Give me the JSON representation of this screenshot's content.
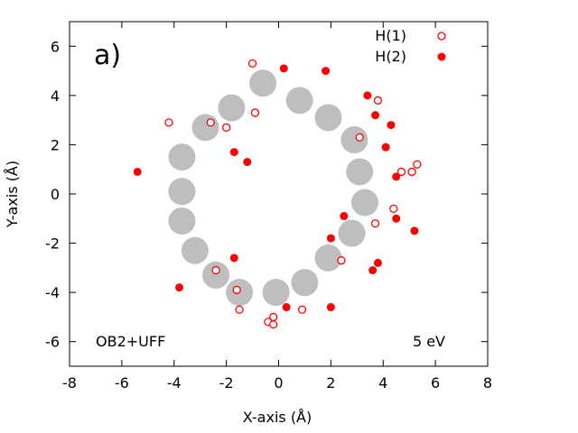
{
  "chart_data": {
    "type": "scatter",
    "panel_label": "a)",
    "xlabel": "X-axis (Å)",
    "ylabel": "Y-axis (Å)",
    "xlim": [
      -8,
      8
    ],
    "ylim": [
      -7,
      7
    ],
    "x_ticks": [
      -8,
      -6,
      -4,
      -2,
      0,
      2,
      4,
      6,
      8
    ],
    "y_ticks": [
      -6,
      -4,
      -2,
      0,
      2,
      4,
      6
    ],
    "grid": false,
    "legend_position": "top-right",
    "annotations": {
      "method": "OB2+UFF",
      "energy": "5 eV"
    },
    "ring": {
      "name": "ring atoms",
      "color": "#bebebe",
      "points": [
        [
          -0.6,
          4.5
        ],
        [
          0.8,
          3.8
        ],
        [
          1.9,
          3.1
        ],
        [
          2.9,
          2.2
        ],
        [
          3.1,
          0.9
        ],
        [
          3.3,
          -0.35
        ],
        [
          2.8,
          -1.6
        ],
        [
          1.9,
          -2.6
        ],
        [
          1.0,
          -3.6
        ],
        [
          -0.1,
          -4.0
        ],
        [
          -1.5,
          -4.0
        ],
        [
          -2.4,
          -3.3
        ],
        [
          -3.2,
          -2.3
        ],
        [
          -3.7,
          -1.1
        ],
        [
          -3.7,
          0.1
        ],
        [
          -3.7,
          1.5
        ],
        [
          -2.8,
          2.7
        ],
        [
          -1.8,
          3.5
        ]
      ]
    },
    "series": [
      {
        "name": "H(1)",
        "marker": "open-circle",
        "color": "#ff0000",
        "points": [
          [
            -1.0,
            5.3
          ],
          [
            -4.2,
            2.9
          ],
          [
            -2.6,
            2.9
          ],
          [
            -2.0,
            2.7
          ],
          [
            -0.9,
            3.3
          ],
          [
            3.1,
            2.3
          ],
          [
            3.8,
            3.8
          ],
          [
            4.7,
            0.9
          ],
          [
            5.1,
            0.9
          ],
          [
            5.3,
            1.2
          ],
          [
            4.4,
            -0.6
          ],
          [
            3.7,
            -1.2
          ],
          [
            2.4,
            -2.7
          ],
          [
            -2.4,
            -3.1
          ],
          [
            -1.6,
            -3.9
          ],
          [
            -1.5,
            -4.7
          ],
          [
            -0.4,
            -5.2
          ],
          [
            -0.2,
            -5.0
          ],
          [
            -0.2,
            -5.3
          ],
          [
            0.9,
            -4.7
          ]
        ]
      },
      {
        "name": "H(2)",
        "marker": "filled-circle",
        "color": "#ff0000",
        "points": [
          [
            0.2,
            5.1
          ],
          [
            1.8,
            5.0
          ],
          [
            3.4,
            4.0
          ],
          [
            3.7,
            3.2
          ],
          [
            4.3,
            2.8
          ],
          [
            4.1,
            1.9
          ],
          [
            -1.7,
            1.7
          ],
          [
            -1.2,
            1.3
          ],
          [
            -5.4,
            0.9
          ],
          [
            4.5,
            0.7
          ],
          [
            2.5,
            -0.9
          ],
          [
            4.5,
            -1.0
          ],
          [
            5.2,
            -1.5
          ],
          [
            2.0,
            -1.8
          ],
          [
            -1.7,
            -2.6
          ],
          [
            3.8,
            -2.8
          ],
          [
            3.6,
            -3.1
          ],
          [
            -3.8,
            -3.8
          ],
          [
            0.3,
            -4.6
          ],
          [
            2.0,
            -4.6
          ]
        ]
      }
    ]
  }
}
